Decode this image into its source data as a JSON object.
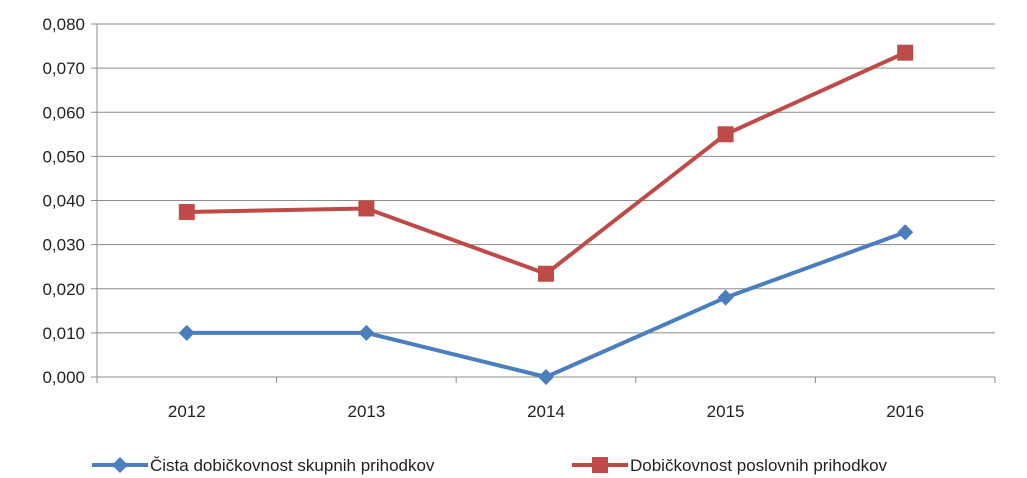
{
  "chart_data": {
    "type": "line",
    "title": "",
    "xlabel": "",
    "ylabel": "",
    "categories": [
      "2012",
      "2013",
      "2014",
      "2015",
      "2016"
    ],
    "ylim": [
      0,
      0.08
    ],
    "y_ticks": [
      "0,000",
      "0,010",
      "0,020",
      "0,030",
      "0,040",
      "0,050",
      "0,060",
      "0,070",
      "0,080"
    ],
    "grid": true,
    "legend_position": "bottom",
    "series": [
      {
        "name": "Čista dobičkovnost skupnih prihodkov",
        "values": [
          0.01,
          0.01,
          0.0,
          0.018,
          0.0328
        ],
        "color": "#4a7ebf",
        "marker": "diamond"
      },
      {
        "name": "Dobičkovnost poslovnih prihodkov",
        "values": [
          0.0374,
          0.0382,
          0.0234,
          0.055,
          0.0735
        ],
        "color": "#be4b48",
        "marker": "square"
      }
    ]
  }
}
